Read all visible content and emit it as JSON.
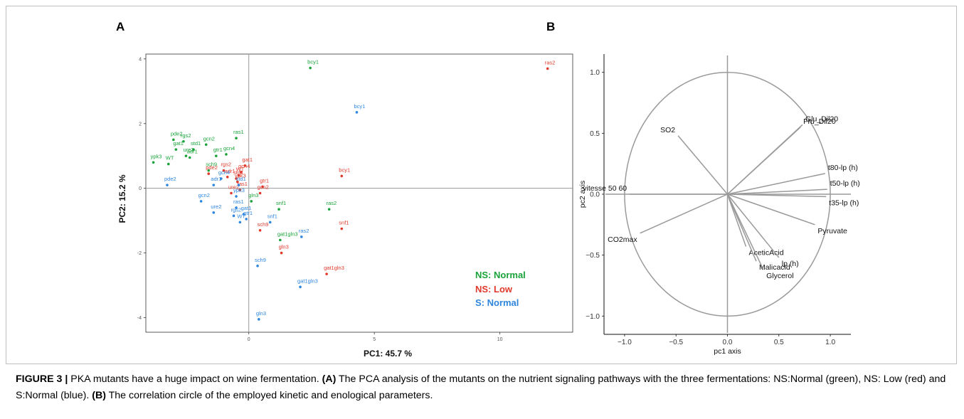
{
  "panel_a_letter": "A",
  "panel_b_letter": "B",
  "legend": [
    {
      "label": "NS: Normal",
      "color": "#1aa33a"
    },
    {
      "label": "NS: Low",
      "color": "#e0392b"
    },
    {
      "label": "S: Normal",
      "color": "#2e86de"
    }
  ],
  "caption": {
    "figure_label": "FIGURE 3 |",
    "text1": " PKA mutants have a huge impact on wine fermentation. ",
    "ref_a": "(A)",
    "text2": " The PCA analysis of the mutants on the nutrient signaling pathways with the three fermentations: NS:Normal (green), NS: Low (red) and S:Normal (blue). ",
    "ref_b": "(B)",
    "text3": " The correlation circle of the employed kinetic and enological parameters."
  },
  "chart_data": [
    {
      "type": "scatter",
      "xlabel": "PC1: 45.7 %",
      "ylabel": "PC2: 15.2 %",
      "xlim": [
        -4.1,
        12.9
      ],
      "ylim": [
        -4.45,
        4.15
      ],
      "xticks": [
        0,
        5,
        10
      ],
      "yticks": [
        -4,
        -2,
        0,
        2,
        4
      ],
      "series": [
        {
          "name": "NS: Normal",
          "color": "#1aa33a",
          "points": [
            {
              "label": "bcy1",
              "x": 2.45,
              "y": 3.72
            },
            {
              "label": "ras1",
              "x": -0.5,
              "y": 1.55
            },
            {
              "label": "pde2",
              "x": -3.0,
              "y": 1.5
            },
            {
              "label": "rgs2",
              "x": -2.6,
              "y": 1.45
            },
            {
              "label": "gat1",
              "x": -2.9,
              "y": 1.2
            },
            {
              "label": "std1",
              "x": -2.2,
              "y": 1.2
            },
            {
              "label": "gcn2",
              "x": -1.7,
              "y": 1.35
            },
            {
              "label": "gcn4",
              "x": -0.9,
              "y": 1.05
            },
            {
              "label": "gtr1",
              "x": -1.3,
              "y": 1.0
            },
            {
              "label": "ure2",
              "x": -2.5,
              "y": 1.0
            },
            {
              "label": "adr1",
              "x": -2.35,
              "y": 0.95
            },
            {
              "label": "ypk3",
              "x": -3.8,
              "y": 0.8
            },
            {
              "label": "WT",
              "x": -3.2,
              "y": 0.75
            },
            {
              "label": "sch9",
              "x": -1.6,
              "y": 0.55
            },
            {
              "label": "gln3",
              "x": 0.1,
              "y": -0.4
            },
            {
              "label": "snf1",
              "x": 1.2,
              "y": -0.65
            },
            {
              "label": "ras2",
              "x": 3.2,
              "y": -0.65
            },
            {
              "label": "gat1gln3",
              "x": 1.25,
              "y": -1.6
            }
          ]
        },
        {
          "name": "NS: Low",
          "color": "#e0392b",
          "points": [
            {
              "label": "ras2",
              "x": 11.9,
              "y": 3.7
            },
            {
              "label": "bcy1",
              "x": 3.7,
              "y": 0.38
            },
            {
              "label": "snf1",
              "x": 3.7,
              "y": -1.25
            },
            {
              "label": "gat1gln3",
              "x": 3.1,
              "y": -2.65
            },
            {
              "label": "gln3",
              "x": 1.3,
              "y": -2.0
            },
            {
              "label": "sch9",
              "x": 0.45,
              "y": -1.3
            },
            {
              "label": "gat1",
              "x": -0.15,
              "y": 0.7
            },
            {
              "label": "gcn4",
              "x": -0.3,
              "y": 0.5
            },
            {
              "label": "rgs2",
              "x": -1.0,
              "y": 0.55
            },
            {
              "label": "pde2",
              "x": -1.6,
              "y": 0.45
            },
            {
              "label": "WT",
              "x": -0.4,
              "y": 0.4
            },
            {
              "label": "adr1",
              "x": -0.85,
              "y": 0.35
            },
            {
              "label": "std1",
              "x": -0.5,
              "y": 0.3
            },
            {
              "label": "ypk3",
              "x": -0.45,
              "y": 0.2
            },
            {
              "label": "gtr1",
              "x": 0.55,
              "y": 0.05
            },
            {
              "label": "ras1",
              "x": -0.35,
              "y": -0.05
            },
            {
              "label": "gcn2",
              "x": 0.45,
              "y": -0.15
            },
            {
              "label": "ure2",
              "x": -0.7,
              "y": -0.15
            }
          ]
        },
        {
          "name": "S: Normal",
          "color": "#2e86de",
          "points": [
            {
              "label": "bcy1",
              "x": 4.3,
              "y": 2.35
            },
            {
              "label": "pde2",
              "x": -3.25,
              "y": 0.1
            },
            {
              "label": "gcn4",
              "x": -1.1,
              "y": 0.3
            },
            {
              "label": "adr1",
              "x": -1.4,
              "y": 0.1
            },
            {
              "label": "std1",
              "x": -0.4,
              "y": 0.1
            },
            {
              "label": "ypk3",
              "x": -0.5,
              "y": -0.25
            },
            {
              "label": "gcn2",
              "x": -1.9,
              "y": -0.4
            },
            {
              "label": "ras1",
              "x": -0.5,
              "y": -0.6
            },
            {
              "label": "ure2",
              "x": -1.4,
              "y": -0.75
            },
            {
              "label": "gat1",
              "x": -0.2,
              "y": -0.8
            },
            {
              "label": "rgs2",
              "x": -0.6,
              "y": -0.85
            },
            {
              "label": "WT",
              "x": -0.35,
              "y": -1.05
            },
            {
              "label": "gtr1",
              "x": -0.1,
              "y": -0.95
            },
            {
              "label": "snf1",
              "x": 0.85,
              "y": -1.05
            },
            {
              "label": "ras2",
              "x": 2.1,
              "y": -1.5
            },
            {
              "label": "sch9",
              "x": 0.35,
              "y": -2.4
            },
            {
              "label": "gat1gln3",
              "x": 2.05,
              "y": -3.05
            },
            {
              "label": "gln3",
              "x": 0.4,
              "y": -4.05
            }
          ]
        }
      ]
    },
    {
      "type": "scatter",
      "subtype": "correlation-circle",
      "xlabel": "pc1 axis",
      "ylabel": "pc2 axis",
      "xlim": [
        -1.2,
        1.2
      ],
      "ylim": [
        -1.15,
        1.15
      ],
      "xticks": [
        -1.0,
        -0.5,
        0.0,
        0.5,
        1.0
      ],
      "yticks": [
        -1.0,
        -0.5,
        0.0,
        0.5,
        1.0
      ],
      "xtick_labels": [
        "−1.0",
        "−0.5",
        "0.0",
        "0.5",
        "1.0"
      ],
      "ytick_labels": [
        "−1.0",
        "−0.5",
        "0.0",
        "0.5",
        "1.0"
      ],
      "vectors": [
        {
          "label": "Glu_Dil20",
          "x": 0.73,
          "y": 0.57
        },
        {
          "label": "Fru_Dil20",
          "x": 0.71,
          "y": 0.55
        },
        {
          "label": "SO2",
          "x": -0.48,
          "y": 0.48
        },
        {
          "label": "t80-lp (h)",
          "x": 0.95,
          "y": 0.17
        },
        {
          "label": "t50-lp (h)",
          "x": 0.97,
          "y": 0.04
        },
        {
          "label": "t35-lp (h)",
          "x": 0.96,
          "y": -0.02
        },
        {
          "label": "vitesse 50 60",
          "x": -0.95,
          "y": 0.0
        },
        {
          "label": "Pyruvate",
          "x": 0.85,
          "y": -0.25
        },
        {
          "label": "CO2max",
          "x": -0.85,
          "y": -0.32
        },
        {
          "label": "AceticAcid",
          "x": 0.18,
          "y": -0.43
        },
        {
          "label": "Malicacid",
          "x": 0.28,
          "y": -0.55
        },
        {
          "label": "lp (h)",
          "x": 0.5,
          "y": -0.52
        },
        {
          "label": "Glycerol",
          "x": 0.35,
          "y": -0.62
        }
      ]
    }
  ]
}
